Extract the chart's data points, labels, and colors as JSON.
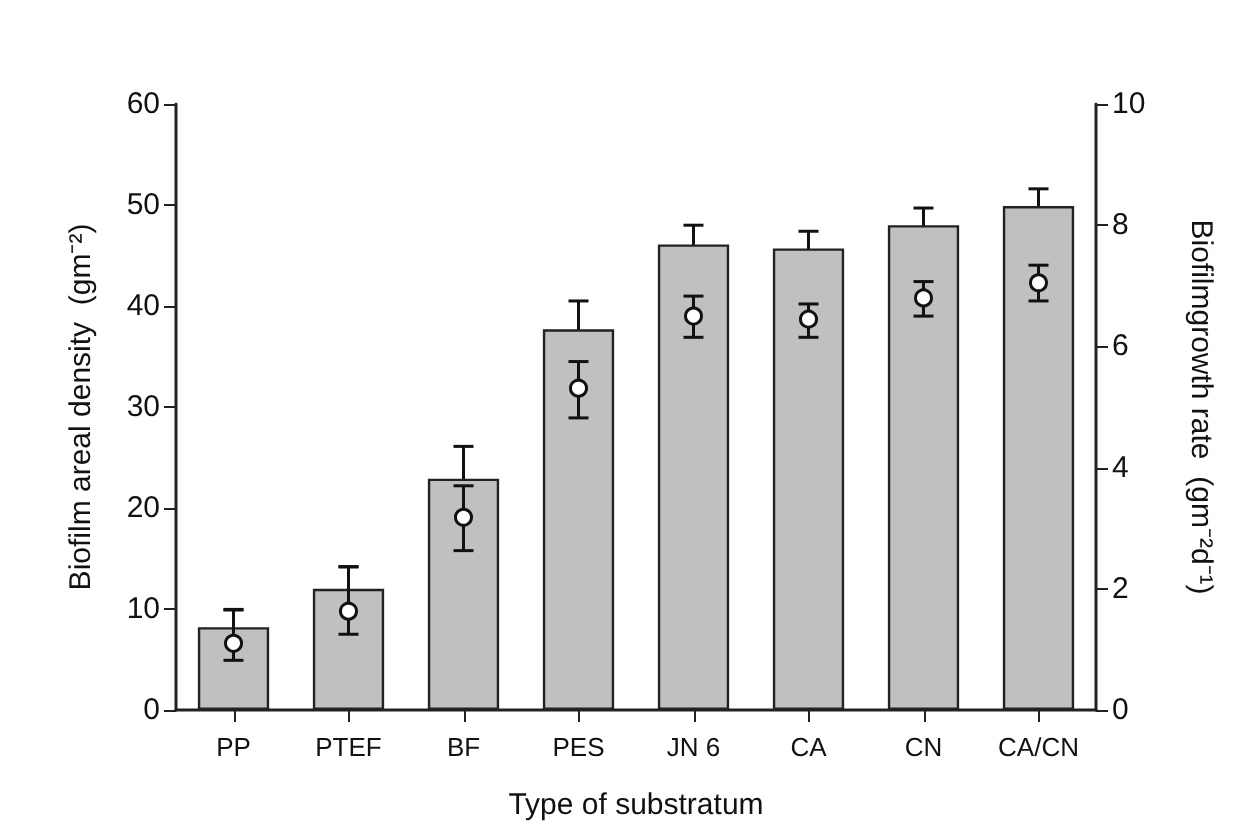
{
  "chart_data": {
    "type": "bar",
    "xlabel": "Type of substratum",
    "ylabel": "Biofilm areal density  (gm⁻²)",
    "y2label": "Biofilmgrowth rate  (gm⁻²d⁻¹)",
    "categories": [
      "PP",
      "PTEF",
      "BF",
      "PES",
      "JN 6",
      "CA",
      "CN",
      "CA/CN"
    ],
    "series": [
      {
        "color": "#c0c0c0",
        "values": [
          8.2,
          12.0,
          22.9,
          37.7,
          46.1,
          45.7,
          48.0,
          49.9
        ],
        "errors": [
          1.7,
          2.2,
          3.2,
          2.8,
          1.9,
          1.7,
          1.7,
          1.7
        ]
      },
      {
        "type": "scatter",
        "axis": "y2",
        "color": "#ffffff",
        "marker": "circle",
        "values": [
          1.1,
          1.63,
          3.18,
          5.31,
          6.5,
          6.45,
          6.8,
          7.05
        ],
        "errors": [
          [
            0.82,
            1.66
          ],
          [
            1.25,
            2.36
          ],
          [
            2.63,
            3.7
          ],
          [
            4.82,
            5.75
          ],
          [
            6.15,
            6.83
          ],
          [
            6.15,
            6.7
          ],
          [
            6.5,
            7.07
          ],
          [
            6.75,
            7.34
          ]
        ]
      }
    ],
    "ylim": [
      0,
      60
    ],
    "yticks": [
      0,
      10,
      20,
      30,
      40,
      50,
      60
    ],
    "y2lim": [
      0,
      10
    ],
    "y2ticks": [
      0,
      2,
      4,
      6,
      8,
      10
    ],
    "grid": false
  }
}
